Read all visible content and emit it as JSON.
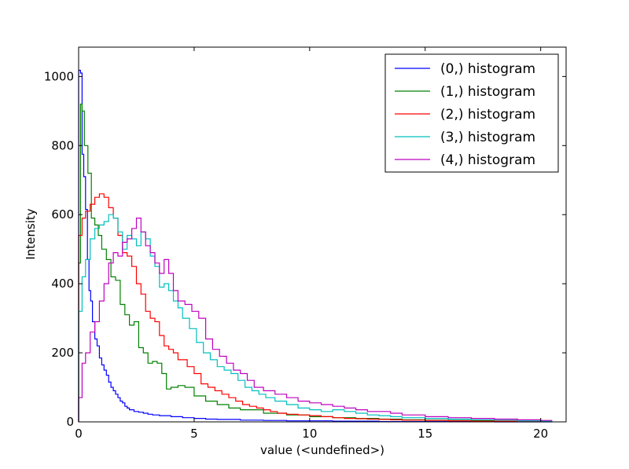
{
  "chart_data": {
    "type": "histogram",
    "xlabel": "value (<undefined>)",
    "ylabel": "Intensity",
    "xlim": [
      0,
      21.1
    ],
    "ylim": [
      0,
      1085
    ],
    "xticks": [
      0,
      5,
      10,
      15,
      20
    ],
    "yticks": [
      0,
      200,
      400,
      600,
      800,
      1000
    ],
    "grid": false,
    "legend_position": "top-right",
    "series": [
      {
        "name": "(0,) histogram",
        "color": "#0000ff",
        "x": [
          0,
          0.08,
          0.15,
          0.22,
          0.3,
          0.38,
          0.45,
          0.52,
          0.6,
          0.7,
          0.8,
          0.9,
          1.0,
          1.1,
          1.2,
          1.3,
          1.4,
          1.5,
          1.6,
          1.7,
          1.8,
          1.9,
          2.0,
          2.1,
          2.2,
          2.4,
          2.6,
          2.8,
          3.0,
          3.2,
          3.5,
          4.0,
          4.5,
          5.0,
          5.5,
          6.0,
          7.0,
          8.0,
          9.0,
          10.0,
          11.0,
          12.0,
          13.0,
          14.0,
          16.0,
          18.0,
          20.0
        ],
        "y": [
          1018,
          1010,
          775,
          710,
          615,
          470,
          380,
          350,
          290,
          240,
          220,
          185,
          165,
          150,
          135,
          115,
          100,
          90,
          80,
          70,
          60,
          55,
          45,
          40,
          35,
          30,
          28,
          25,
          22,
          20,
          18,
          15,
          12,
          10,
          8,
          7,
          5,
          4,
          3,
          3,
          2,
          2,
          1,
          1,
          1,
          0,
          0
        ]
      },
      {
        "name": "(1,) histogram",
        "color": "#008000",
        "x": [
          0,
          0.08,
          0.15,
          0.25,
          0.4,
          0.55,
          0.7,
          0.85,
          1.0,
          1.2,
          1.4,
          1.6,
          1.8,
          2.0,
          2.2,
          2.4,
          2.6,
          2.8,
          3.0,
          3.2,
          3.4,
          3.6,
          3.8,
          4.0,
          4.3,
          4.6,
          5.0,
          5.5,
          6.0,
          6.5,
          7.0,
          8.0,
          9.0,
          10.0,
          11.0,
          12.0,
          13.0,
          14.0,
          15.0,
          16.0,
          18.0,
          20.0
        ],
        "y": [
          460,
          920,
          900,
          800,
          720,
          590,
          570,
          540,
          500,
          470,
          420,
          410,
          340,
          310,
          280,
          290,
          215,
          200,
          170,
          175,
          170,
          140,
          95,
          100,
          105,
          100,
          75,
          60,
          50,
          40,
          35,
          25,
          20,
          15,
          12,
          10,
          8,
          6,
          5,
          4,
          2,
          1
        ]
      },
      {
        "name": "(2,) histogram",
        "color": "#ff0000",
        "x": [
          0,
          0.15,
          0.3,
          0.5,
          0.7,
          0.9,
          1.1,
          1.3,
          1.5,
          1.7,
          1.9,
          2.1,
          2.3,
          2.5,
          2.7,
          2.9,
          3.1,
          3.3,
          3.5,
          3.7,
          3.9,
          4.1,
          4.3,
          4.5,
          4.7,
          5.0,
          5.3,
          5.6,
          5.9,
          6.2,
          6.5,
          6.8,
          7.1,
          7.4,
          7.7,
          8.0,
          8.3,
          8.6,
          9.0,
          9.5,
          10.0,
          10.5,
          11.0,
          11.5,
          12.0,
          12.5,
          13.0,
          13.5,
          14.0,
          15.0,
          16.0,
          17.0,
          18.0,
          19.0,
          20.0
        ],
        "y": [
          540,
          590,
          610,
          630,
          650,
          660,
          650,
          620,
          590,
          540,
          490,
          480,
          450,
          400,
          370,
          320,
          300,
          290,
          250,
          220,
          210,
          200,
          180,
          180,
          160,
          140,
          110,
          100,
          90,
          80,
          70,
          60,
          50,
          45,
          40,
          35,
          30,
          25,
          22,
          20,
          18,
          15,
          12,
          10,
          9,
          8,
          7,
          6,
          5,
          4,
          3,
          2,
          2,
          1,
          1
        ]
      },
      {
        "name": "(3,) histogram",
        "color": "#00bfbf",
        "x": [
          0,
          0.15,
          0.3,
          0.5,
          0.7,
          0.9,
          1.1,
          1.3,
          1.5,
          1.7,
          1.9,
          2.1,
          2.3,
          2.5,
          2.7,
          2.9,
          3.1,
          3.3,
          3.5,
          3.7,
          3.9,
          4.1,
          4.3,
          4.5,
          4.8,
          5.1,
          5.4,
          5.7,
          6.0,
          6.3,
          6.6,
          6.9,
          7.2,
          7.5,
          7.8,
          8.1,
          8.5,
          9.0,
          9.5,
          10.0,
          10.5,
          11.0,
          11.5,
          12.0,
          12.5,
          13.0,
          13.5,
          14.0,
          15.0,
          16.0,
          17.0,
          18.0,
          19.0,
          20.0
        ],
        "y": [
          320,
          420,
          470,
          530,
          560,
          570,
          580,
          600,
          590,
          550,
          500,
          540,
          530,
          510,
          550,
          530,
          480,
          450,
          390,
          400,
          380,
          350,
          330,
          300,
          270,
          230,
          200,
          180,
          160,
          150,
          140,
          120,
          100,
          90,
          80,
          70,
          60,
          50,
          40,
          35,
          30,
          35,
          30,
          25,
          20,
          18,
          15,
          12,
          10,
          8,
          6,
          5,
          3,
          2
        ]
      },
      {
        "name": "(4,) histogram",
        "color": "#bf00bf",
        "x": [
          0,
          0.15,
          0.3,
          0.5,
          0.7,
          0.9,
          1.1,
          1.3,
          1.5,
          1.7,
          1.9,
          2.1,
          2.3,
          2.5,
          2.7,
          2.9,
          3.1,
          3.3,
          3.5,
          3.7,
          3.9,
          4.1,
          4.3,
          4.6,
          4.9,
          5.2,
          5.5,
          5.8,
          6.1,
          6.4,
          6.7,
          7.0,
          7.3,
          7.6,
          8.0,
          8.5,
          9.0,
          9.5,
          10.0,
          10.5,
          11.0,
          11.5,
          12.0,
          12.5,
          13.0,
          13.5,
          14.0,
          15.0,
          16.0,
          17.0,
          18.0,
          19.0,
          20.0
        ],
        "y": [
          70,
          170,
          200,
          260,
          290,
          350,
          400,
          460,
          490,
          480,
          520,
          530,
          560,
          590,
          550,
          510,
          490,
          460,
          430,
          470,
          430,
          380,
          350,
          340,
          320,
          300,
          240,
          210,
          190,
          170,
          150,
          140,
          120,
          100,
          90,
          80,
          70,
          60,
          55,
          50,
          45,
          40,
          35,
          30,
          30,
          25,
          20,
          15,
          12,
          10,
          8,
          6,
          4
        ]
      }
    ]
  }
}
